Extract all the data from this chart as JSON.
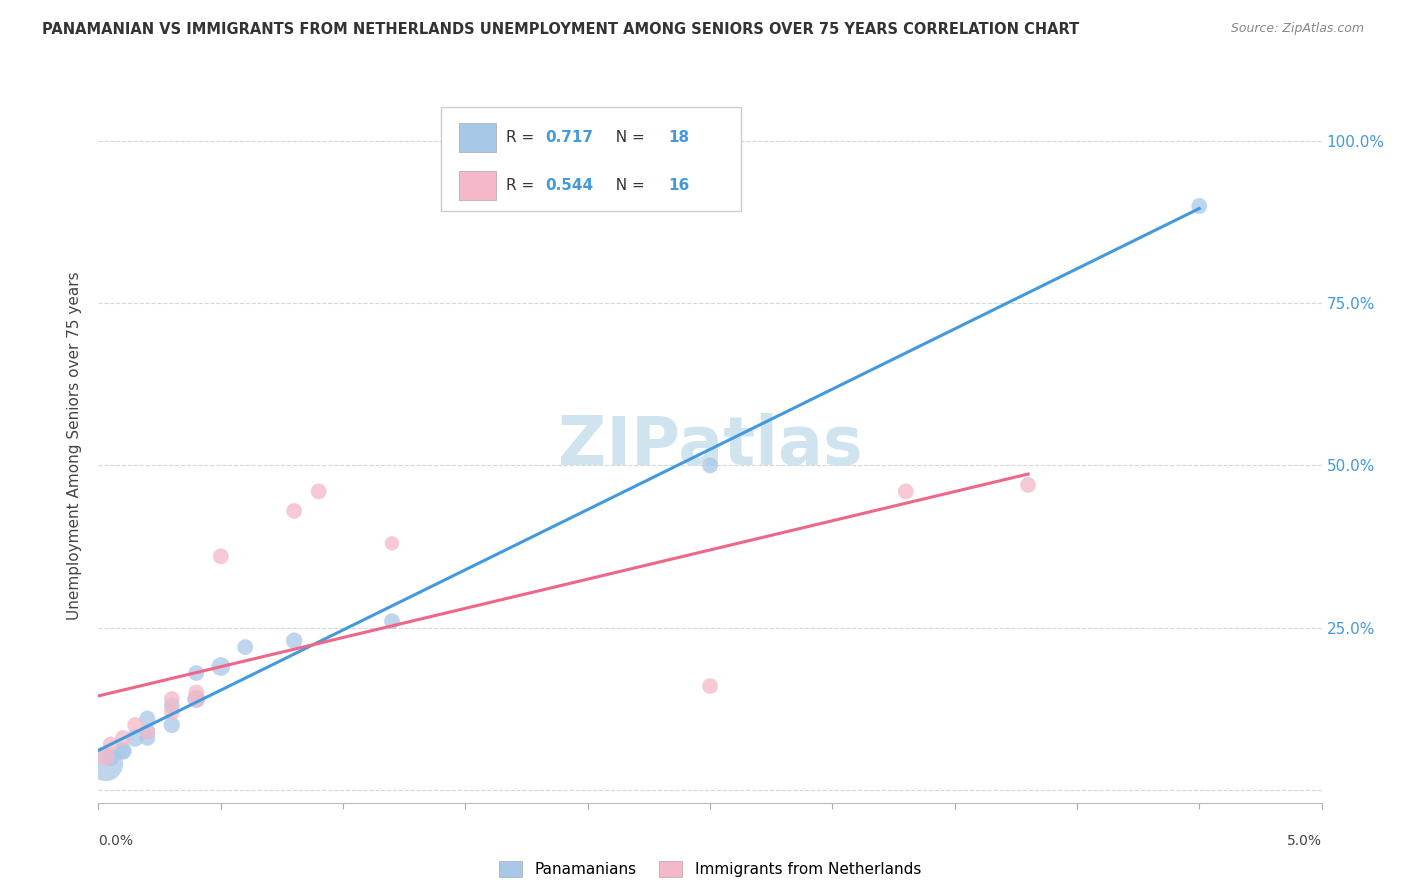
{
  "title": "PANAMANIAN VS IMMIGRANTS FROM NETHERLANDS UNEMPLOYMENT AMONG SENIORS OVER 75 YEARS CORRELATION CHART",
  "source": "Source: ZipAtlas.com",
  "ylabel": "Unemployment Among Seniors over 75 years",
  "yticks": [
    0.0,
    0.25,
    0.5,
    0.75,
    1.0
  ],
  "ytick_labels": [
    "",
    "25.0%",
    "50.0%",
    "75.0%",
    "100.0%"
  ],
  "xlim": [
    0.0,
    0.05
  ],
  "ylim": [
    -0.02,
    1.08
  ],
  "blue_R": 0.717,
  "blue_N": 18,
  "pink_R": 0.544,
  "pink_N": 16,
  "blue_color": "#a8c8e8",
  "pink_color": "#f4b8c8",
  "blue_line_color": "#4499dd",
  "pink_line_color": "#ee6688",
  "watermark_color": "#d0e4f0",
  "blue_scatter_x": [
    0.0003,
    0.0005,
    0.001,
    0.001,
    0.0015,
    0.002,
    0.002,
    0.002,
    0.003,
    0.003,
    0.004,
    0.004,
    0.005,
    0.006,
    0.008,
    0.012,
    0.025,
    0.045
  ],
  "blue_scatter_y": [
    0.04,
    0.05,
    0.06,
    0.06,
    0.08,
    0.08,
    0.09,
    0.11,
    0.1,
    0.13,
    0.18,
    0.14,
    0.19,
    0.22,
    0.23,
    0.26,
    0.5,
    0.9
  ],
  "blue_scatter_size": [
    600,
    150,
    150,
    120,
    150,
    120,
    120,
    120,
    130,
    120,
    120,
    160,
    170,
    120,
    130,
    120,
    120,
    120
  ],
  "pink_scatter_x": [
    0.0003,
    0.0005,
    0.001,
    0.0015,
    0.002,
    0.003,
    0.003,
    0.004,
    0.004,
    0.005,
    0.008,
    0.009,
    0.012,
    0.025,
    0.033,
    0.038
  ],
  "pink_scatter_y": [
    0.05,
    0.07,
    0.08,
    0.1,
    0.09,
    0.12,
    0.14,
    0.14,
    0.15,
    0.36,
    0.43,
    0.46,
    0.38,
    0.16,
    0.46,
    0.47
  ],
  "pink_scatter_size": [
    150,
    120,
    120,
    120,
    120,
    120,
    120,
    130,
    120,
    120,
    120,
    120,
    100,
    120,
    120,
    120
  ],
  "legend_blue_label": "Panamanians",
  "legend_pink_label": "Immigrants from Netherlands",
  "background_color": "#ffffff",
  "grid_color": "#cccccc"
}
